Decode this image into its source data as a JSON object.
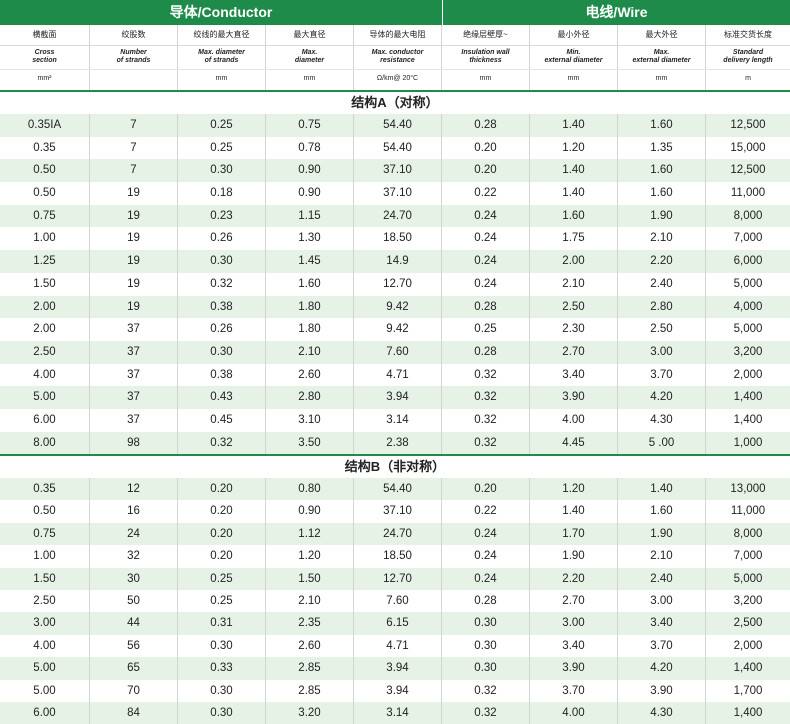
{
  "group_headers": {
    "conductor": "导体/Conductor",
    "wire": "电线/Wire"
  },
  "columns": [
    {
      "cn": "横截面",
      "en": [
        "Cross",
        "section"
      ],
      "unit": "mm²"
    },
    {
      "cn": "绞股数",
      "en": [
        "Number",
        "of strands"
      ],
      "unit": ""
    },
    {
      "cn": "绞线的最大直径",
      "en": [
        "Max. diameter",
        "of strands"
      ],
      "unit": "mm"
    },
    {
      "cn": "最大直径",
      "en": [
        "Max.",
        "diameter"
      ],
      "unit": "mm"
    },
    {
      "cn": "导体的最大电阻",
      "en": [
        "Max. conductor",
        "resistance"
      ],
      "unit": "Ω/km@ 20°C"
    },
    {
      "cn": "绝缘层壁厚~",
      "en": [
        "Insulation wall",
        "thickness"
      ],
      "unit": "mm"
    },
    {
      "cn": "最小外径",
      "en": [
        "Min.",
        "external diameter"
      ],
      "unit": "mm"
    },
    {
      "cn": "最大外径",
      "en": [
        "Max.",
        "external diameter"
      ],
      "unit": "mm"
    },
    {
      "cn": "标准交货长度",
      "en": [
        "Standard",
        "delivery length"
      ],
      "unit": "m"
    }
  ],
  "sections": [
    {
      "title": "结构A（对称）",
      "rows": [
        [
          "0.35IA",
          "7",
          "0.25",
          "0.75",
          "54.40",
          "0.28",
          "1.40",
          "1.60",
          "12,500"
        ],
        [
          "0.35",
          "7",
          "0.25",
          "0.78",
          "54.40",
          "0.20",
          "1.20",
          "1.35",
          "15,000"
        ],
        [
          "0.50",
          "7",
          "0.30",
          "0.90",
          "37.10",
          "0.20",
          "1.40",
          "1.60",
          "12,500"
        ],
        [
          "0.50",
          "19",
          "0.18",
          "0.90",
          "37.10",
          "0.22",
          "1.40",
          "1.60",
          "11,000"
        ],
        [
          "0.75",
          "19",
          "0.23",
          "1.15",
          "24.70",
          "0.24",
          "1.60",
          "1.90",
          "8,000"
        ],
        [
          "1.00",
          "19",
          "0.26",
          "1.30",
          "18.50",
          "0.24",
          "1.75",
          "2.10",
          "7,000"
        ],
        [
          "1.25",
          "19",
          "0.30",
          "1.45",
          "14.9",
          "0.24",
          "2.00",
          "2.20",
          "6,000"
        ],
        [
          "1.50",
          "19",
          "0.32",
          "1.60",
          "12.70",
          "0.24",
          "2.10",
          "2.40",
          "5,000"
        ],
        [
          "2.00",
          "19",
          "0.38",
          "1.80",
          "9.42",
          "0.28",
          "2.50",
          "2.80",
          "4,000"
        ],
        [
          "2.00",
          "37",
          "0.26",
          "1.80",
          "9.42",
          "0.25",
          "2.30",
          "2.50",
          "5,000"
        ],
        [
          "2.50",
          "37",
          "0.30",
          "2.10",
          "7.60",
          "0.28",
          "2.70",
          "3.00",
          "3,200"
        ],
        [
          "4.00",
          "37",
          "0.38",
          "2.60",
          "4.71",
          "0.32",
          "3.40",
          "3.70",
          "2,000"
        ],
        [
          "5.00",
          "37",
          "0.43",
          "2.80",
          "3.94",
          "0.32",
          "3.90",
          "4.20",
          "1,400"
        ],
        [
          "6.00",
          "37",
          "0.45",
          "3.10",
          "3.14",
          "0.32",
          "4.00",
          "4.30",
          "1,400"
        ],
        [
          "8.00",
          "98",
          "0.32",
          "3.50",
          "2.38",
          "0.32",
          "4.45",
          "5 .00",
          "1,000"
        ]
      ]
    },
    {
      "title": "结构B（非对称）",
      "rows": [
        [
          "0.35",
          "12",
          "0.20",
          "0.80",
          "54.40",
          "0.20",
          "1.20",
          "1.40",
          "13,000"
        ],
        [
          "0.50",
          "16",
          "0.20",
          "0.90",
          "37.10",
          "0.22",
          "1.40",
          "1.60",
          "11,000"
        ],
        [
          "0.75",
          "24",
          "0.20",
          "1.12",
          "24.70",
          "0.24",
          "1.70",
          "1.90",
          "8,000"
        ],
        [
          "1.00",
          "32",
          "0.20",
          "1.20",
          "18.50",
          "0.24",
          "1.90",
          "2.10",
          "7,000"
        ],
        [
          "1.50",
          "30",
          "0.25",
          "1.50",
          "12.70",
          "0.24",
          "2.20",
          "2.40",
          "5,000"
        ],
        [
          "2.50",
          "50",
          "0.25",
          "2.10",
          "7.60",
          "0.28",
          "2.70",
          "3.00",
          "3,200"
        ],
        [
          "3.00",
          "44",
          "0.31",
          "2.35",
          "6.15",
          "0.30",
          "3.00",
          "3.40",
          "2,500"
        ],
        [
          "4.00",
          "56",
          "0.30",
          "2.60",
          "4.71",
          "0.30",
          "3.40",
          "3.70",
          "2,000"
        ],
        [
          "5.00",
          "65",
          "0.33",
          "2.85",
          "3.94",
          "0.30",
          "3.90",
          "4.20",
          "1,400"
        ],
        [
          "5.00",
          "70",
          "0.30",
          "2.85",
          "3.94",
          "0.32",
          "3.70",
          "3.90",
          "1,700"
        ],
        [
          "6.00",
          "84",
          "0.30",
          "3.20",
          "3.14",
          "0.32",
          "4.00",
          "4.30",
          "1,400"
        ]
      ]
    }
  ],
  "colors": {
    "brand_green": "#1e8b4a",
    "row_tint": "#e7f2e6"
  }
}
